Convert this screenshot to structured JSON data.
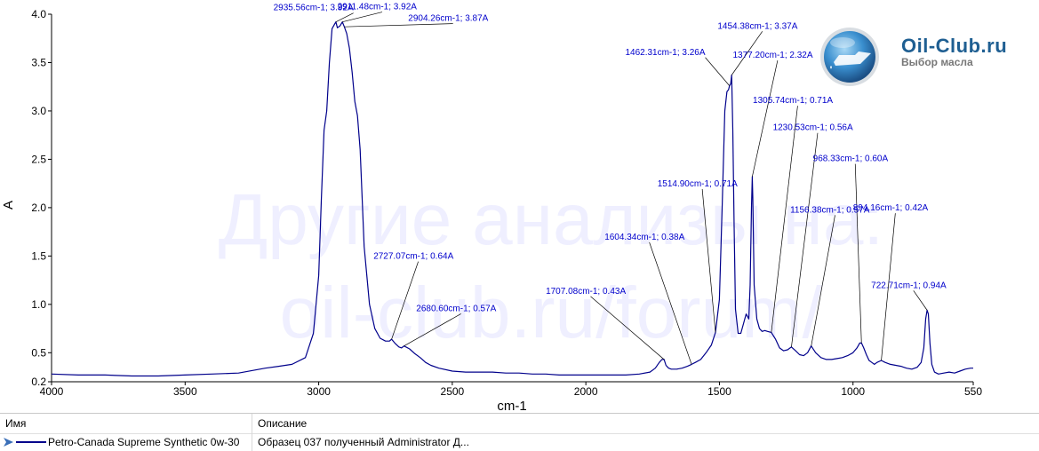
{
  "chart_data": {
    "type": "line",
    "xlabel": "cm-1",
    "ylabel": "A",
    "xlim": [
      4000,
      550
    ],
    "ylim": [
      0.2,
      4.0
    ],
    "x_reversed": true,
    "x_ticks": [
      4000,
      3500,
      3000,
      2500,
      2000,
      1500,
      1000,
      550
    ],
    "y_ticks": [
      "0.2",
      "0.5",
      "1.0",
      "1.5",
      "2.0",
      "2.5",
      "3.0",
      "3.5",
      "4.0"
    ],
    "series": [
      {
        "name": "Petro-Canada Supreme Synthetic 0w-30",
        "color": "#00008b",
        "x": [
          4000,
          3900,
          3800,
          3700,
          3600,
          3500,
          3400,
          3300,
          3200,
          3150,
          3100,
          3050,
          3020,
          3000,
          2990,
          2980,
          2970,
          2960,
          2950,
          2940,
          2935.56,
          2930,
          2920,
          2911.48,
          2904.26,
          2895,
          2885,
          2875,
          2865,
          2855,
          2845,
          2830,
          2810,
          2790,
          2770,
          2750,
          2735,
          2727.07,
          2715,
          2700,
          2690,
          2680.6,
          2660,
          2640,
          2620,
          2600,
          2580,
          2550,
          2500,
          2450,
          2400,
          2350,
          2300,
          2250,
          2200,
          2150,
          2100,
          2050,
          2000,
          1950,
          1900,
          1850,
          1800,
          1760,
          1740,
          1725,
          1715,
          1707.08,
          1700,
          1690,
          1680,
          1660,
          1640,
          1620,
          1604.34,
          1590,
          1570,
          1550,
          1530,
          1514.9,
          1500,
          1490,
          1480,
          1472,
          1466,
          1462.31,
          1458,
          1454.38,
          1450,
          1445,
          1440,
          1430,
          1420,
          1410,
          1400,
          1390,
          1385,
          1380,
          1377.2,
          1375,
          1370,
          1360,
          1350,
          1340,
          1330,
          1320,
          1305.74,
          1290,
          1275,
          1260,
          1245,
          1230.53,
          1215,
          1200,
          1185,
          1170,
          1156.38,
          1140,
          1120,
          1100,
          1080,
          1060,
          1040,
          1020,
          1000,
          985,
          975,
          968.33,
          960,
          950,
          940,
          930,
          920,
          910,
          894.16,
          880,
          860,
          840,
          820,
          800,
          780,
          760,
          745,
          735,
          728,
          722.71,
          718,
          712,
          705,
          695,
          680,
          660,
          640,
          620,
          600,
          580,
          560,
          550
        ],
        "y": [
          0.28,
          0.27,
          0.27,
          0.26,
          0.26,
          0.27,
          0.28,
          0.29,
          0.34,
          0.36,
          0.38,
          0.45,
          0.7,
          1.3,
          2.1,
          2.8,
          3.0,
          3.5,
          3.85,
          3.9,
          3.92,
          3.86,
          3.88,
          3.92,
          3.87,
          3.8,
          3.65,
          3.4,
          3.1,
          2.95,
          2.6,
          1.6,
          1.0,
          0.75,
          0.65,
          0.62,
          0.62,
          0.64,
          0.6,
          0.56,
          0.55,
          0.57,
          0.54,
          0.49,
          0.45,
          0.4,
          0.37,
          0.34,
          0.31,
          0.3,
          0.3,
          0.3,
          0.29,
          0.29,
          0.28,
          0.28,
          0.27,
          0.27,
          0.27,
          0.27,
          0.27,
          0.27,
          0.28,
          0.3,
          0.34,
          0.4,
          0.43,
          0.43,
          0.37,
          0.34,
          0.33,
          0.33,
          0.34,
          0.36,
          0.38,
          0.4,
          0.43,
          0.5,
          0.58,
          0.71,
          1.05,
          2.0,
          3.0,
          3.2,
          3.22,
          3.26,
          3.28,
          3.37,
          2.8,
          1.8,
          0.95,
          0.7,
          0.7,
          0.8,
          0.9,
          0.85,
          1.2,
          2.0,
          2.32,
          2.1,
          1.2,
          0.85,
          0.75,
          0.72,
          0.73,
          0.72,
          0.71,
          0.64,
          0.55,
          0.52,
          0.53,
          0.56,
          0.52,
          0.48,
          0.47,
          0.5,
          0.57,
          0.5,
          0.45,
          0.43,
          0.43,
          0.44,
          0.45,
          0.47,
          0.5,
          0.55,
          0.6,
          0.6,
          0.55,
          0.48,
          0.42,
          0.4,
          0.38,
          0.4,
          0.42,
          0.4,
          0.38,
          0.37,
          0.36,
          0.34,
          0.33,
          0.35,
          0.4,
          0.55,
          0.85,
          0.94,
          0.9,
          0.6,
          0.38,
          0.3,
          0.28,
          0.29,
          0.3,
          0.29,
          0.31,
          0.33,
          0.34,
          0.34
        ]
      }
    ],
    "annotations": [
      {
        "x": 2935.56,
        "y": 3.92,
        "text": "2935.56cm-1; 3.92A",
        "label_x": 2870,
        "label_y": 4.04,
        "anchor": "end"
      },
      {
        "x": 2911.48,
        "y": 3.92,
        "text": "2911.48cm-1; 3.92A",
        "label_x": 2930,
        "label_y": 4.05,
        "anchor": "start"
      },
      {
        "x": 2904.26,
        "y": 3.87,
        "text": "2904.26cm-1; 3.87A",
        "label_x": 2665,
        "label_y": 3.93,
        "anchor": "start"
      },
      {
        "x": 1462.31,
        "y": 3.26,
        "text": "1462.31cm-1; 3.26A",
        "label_x": 1553,
        "label_y": 3.58,
        "anchor": "end"
      },
      {
        "x": 1454.38,
        "y": 3.37,
        "text": "1454.38cm-1; 3.37A",
        "label_x": 1507,
        "label_y": 3.85,
        "anchor": "start"
      },
      {
        "x": 1377.2,
        "y": 2.32,
        "text": "1377.20cm-1; 2.32A",
        "label_x": 1450,
        "label_y": 3.55,
        "anchor": "start"
      },
      {
        "x": 1305.74,
        "y": 0.71,
        "text": "1305.74cm-1; 0.71A",
        "label_x": 1375,
        "label_y": 3.08,
        "anchor": "start"
      },
      {
        "x": 1230.53,
        "y": 0.56,
        "text": "1230.53cm-1; 0.56A",
        "label_x": 1300,
        "label_y": 2.8,
        "anchor": "start"
      },
      {
        "x": 968.33,
        "y": 0.6,
        "text": "968.33cm-1; 0.60A",
        "label_x": 1150,
        "label_y": 2.48,
        "anchor": "start"
      },
      {
        "x": 1514.9,
        "y": 0.71,
        "text": "1514.90cm-1; 0.71A",
        "label_x": 1732,
        "label_y": 2.22,
        "anchor": "start"
      },
      {
        "x": 1156.38,
        "y": 0.57,
        "text": "1156.38cm-1; 0.57A",
        "label_x": 1235,
        "label_y": 1.95,
        "anchor": "start"
      },
      {
        "x": 894.16,
        "y": 0.42,
        "text": "894.16cm-1; 0.42A",
        "label_x": 1000,
        "label_y": 1.97,
        "anchor": "start"
      },
      {
        "x": 1604.34,
        "y": 0.38,
        "text": "1604.34cm-1; 0.38A",
        "label_x": 1930,
        "label_y": 1.67,
        "anchor": "start"
      },
      {
        "x": 2727.07,
        "y": 0.64,
        "text": "2727.07cm-1; 0.64A",
        "label_x": 2795,
        "label_y": 1.47,
        "anchor": "start"
      },
      {
        "x": 722.71,
        "y": 0.94,
        "text": "722.71cm-1; 0.94A",
        "label_x": 932,
        "label_y": 1.17,
        "anchor": "start"
      },
      {
        "x": 1707.08,
        "y": 0.43,
        "text": "1707.08cm-1; 0.43A",
        "label_x": 2150,
        "label_y": 1.11,
        "anchor": "start"
      },
      {
        "x": 2680.6,
        "y": 0.57,
        "text": "2680.60cm-1; 0.57A",
        "label_x": 2635,
        "label_y": 0.93,
        "anchor": "start"
      }
    ],
    "grid": false,
    "watermark": [
      "Другие анализы на:",
      "oil-club.ru/forum/"
    ]
  },
  "logo": {
    "title": "Oil-Club.ru",
    "subtitle": "Выбор масла"
  },
  "legend": {
    "headers": {
      "name": "Имя",
      "description": "Описание"
    },
    "rows": [
      {
        "name": "Petro-Canada Supreme Synthetic 0w-30",
        "description": "Образец 037 полученный Administrator Д..."
      }
    ]
  }
}
